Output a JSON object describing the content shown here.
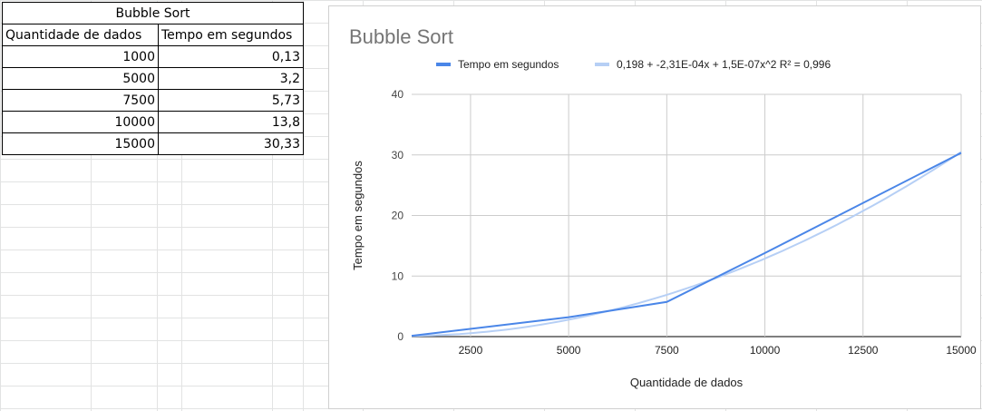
{
  "table": {
    "title": "Bubble Sort",
    "headers": [
      "Quantidade de dados",
      "Tempo em segundos"
    ],
    "rows": [
      [
        "1000",
        "0,13"
      ],
      [
        "5000",
        "3,2"
      ],
      [
        "7500",
        "5,73"
      ],
      [
        "10000",
        "13,8"
      ],
      [
        "15000",
        "30,33"
      ]
    ]
  },
  "chart_data": {
    "type": "line",
    "title": "Bubble Sort",
    "xlabel": "Quantidade de dados",
    "ylabel": "Tempo em segundos",
    "xlim": [
      1000,
      15000
    ],
    "ylim": [
      0,
      40
    ],
    "x_ticks": [
      2500,
      5000,
      7500,
      10000,
      12500,
      15000
    ],
    "y_ticks": [
      0,
      10,
      20,
      30,
      40
    ],
    "grid": true,
    "legend_position": "top",
    "series": [
      {
        "name": "Tempo em segundos",
        "color": "#4a86e8",
        "x": [
          1000,
          5000,
          7500,
          10000,
          15000
        ],
        "y": [
          0.13,
          3.2,
          5.73,
          13.8,
          30.33
        ]
      },
      {
        "name": "0,198 + -2,31E-04x + 1,5E-07x^2 R² = 0,996",
        "color": "#b6cff5",
        "trendline": {
          "type": "polynomial",
          "coefficients": [
            0.198,
            -0.000231,
            1.5e-07
          ]
        }
      }
    ]
  }
}
